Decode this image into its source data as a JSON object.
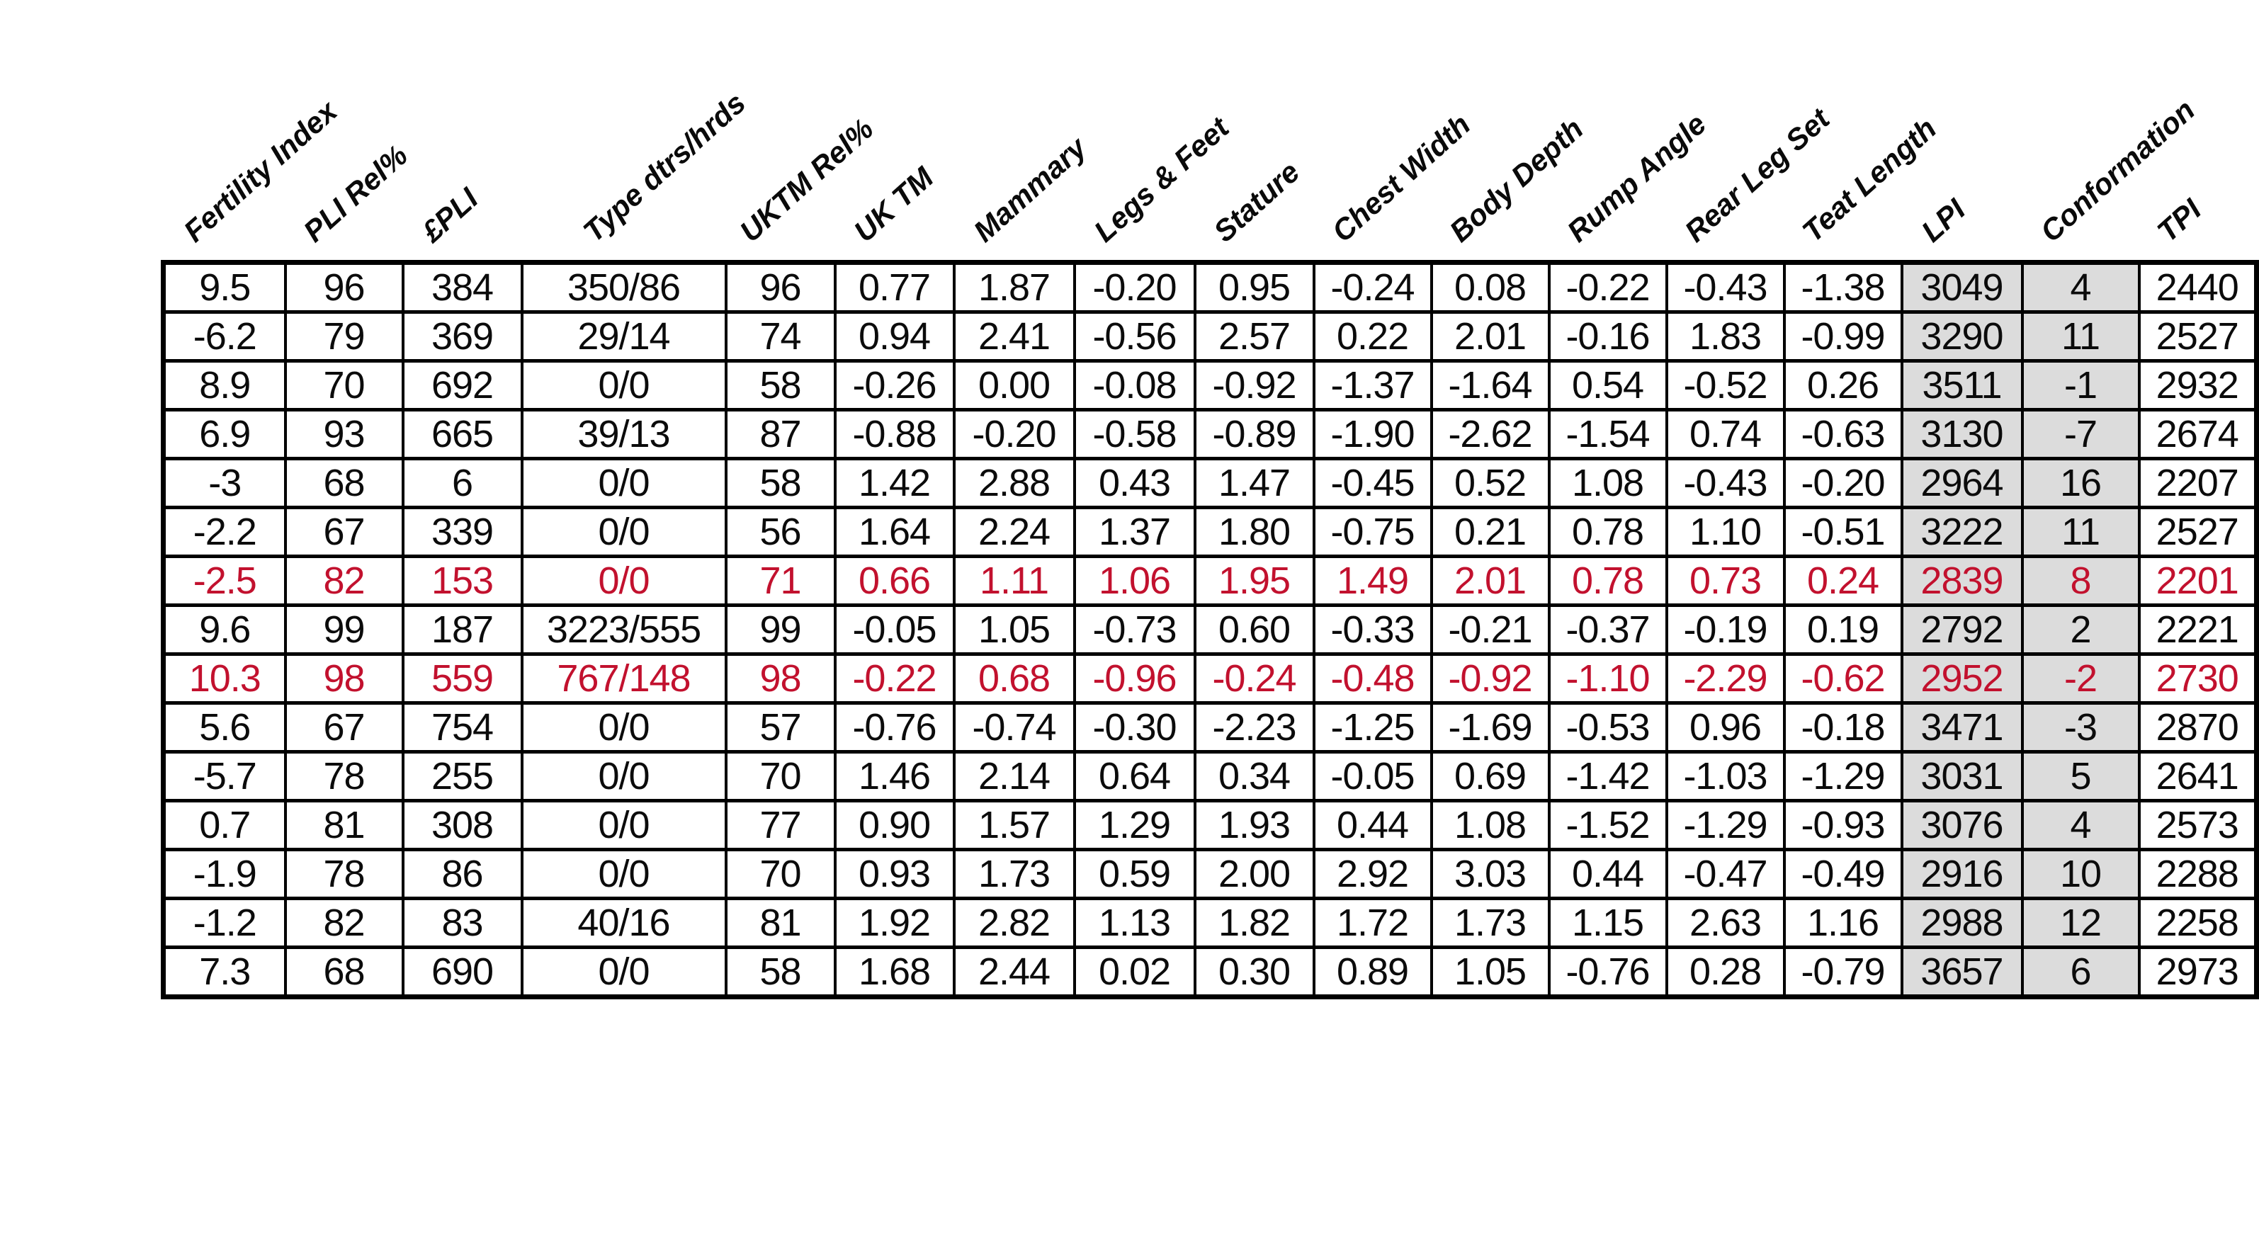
{
  "chart_data": {
    "type": "table",
    "title": "",
    "columns": [
      "Fertility Index",
      "PLI Rel%",
      "£PLI",
      "Type dtrs/hrds",
      "UKTM Rel%",
      "UK TM",
      "Mammary",
      "Legs & Feet",
      "Stature",
      "Chest Width",
      "Body Depth",
      "Rump Angle",
      "Rear Leg Set",
      "Teat Length",
      "LPI",
      "Conformation",
      "TPI"
    ],
    "rows": [
      [
        "9.5",
        "96",
        "384",
        "350/86",
        "96",
        "0.77",
        "1.87",
        "-0.20",
        "0.95",
        "-0.24",
        "0.08",
        "-0.22",
        "-0.43",
        "-1.38",
        "3049",
        "4",
        "2440"
      ],
      [
        "-6.2",
        "79",
        "369",
        "29/14",
        "74",
        "0.94",
        "2.41",
        "-0.56",
        "2.57",
        "0.22",
        "2.01",
        "-0.16",
        "1.83",
        "-0.99",
        "3290",
        "11",
        "2527"
      ],
      [
        "8.9",
        "70",
        "692",
        "0/0",
        "58",
        "-0.26",
        "0.00",
        "-0.08",
        "-0.92",
        "-1.37",
        "-1.64",
        "0.54",
        "-0.52",
        "0.26",
        "3511",
        "-1",
        "2932"
      ],
      [
        "6.9",
        "93",
        "665",
        "39/13",
        "87",
        "-0.88",
        "-0.20",
        "-0.58",
        "-0.89",
        "-1.90",
        "-2.62",
        "-1.54",
        "0.74",
        "-0.63",
        "3130",
        "-7",
        "2674"
      ],
      [
        "-3",
        "68",
        "6",
        "0/0",
        "58",
        "1.42",
        "2.88",
        "0.43",
        "1.47",
        "-0.45",
        "0.52",
        "1.08",
        "-0.43",
        "-0.20",
        "2964",
        "16",
        "2207"
      ],
      [
        "-2.2",
        "67",
        "339",
        "0/0",
        "56",
        "1.64",
        "2.24",
        "1.37",
        "1.80",
        "-0.75",
        "0.21",
        "0.78",
        "1.10",
        "-0.51",
        "3222",
        "11",
        "2527"
      ],
      [
        "-2.5",
        "82",
        "153",
        "0/0",
        "71",
        "0.66",
        "1.11",
        "1.06",
        "1.95",
        "1.49",
        "2.01",
        "0.78",
        "0.73",
        "0.24",
        "2839",
        "8",
        "2201"
      ],
      [
        "9.6",
        "99",
        "187",
        "3223/555",
        "99",
        "-0.05",
        "1.05",
        "-0.73",
        "0.60",
        "-0.33",
        "-0.21",
        "-0.37",
        "-0.19",
        "0.19",
        "2792",
        "2",
        "2221"
      ],
      [
        "10.3",
        "98",
        "559",
        "767/148",
        "98",
        "-0.22",
        "0.68",
        "-0.96",
        "-0.24",
        "-0.48",
        "-0.92",
        "-1.10",
        "-2.29",
        "-0.62",
        "2952",
        "-2",
        "2730"
      ],
      [
        "5.6",
        "67",
        "754",
        "0/0",
        "57",
        "-0.76",
        "-0.74",
        "-0.30",
        "-2.23",
        "-1.25",
        "-1.69",
        "-0.53",
        "0.96",
        "-0.18",
        "3471",
        "-3",
        "2870"
      ],
      [
        "-5.7",
        "78",
        "255",
        "0/0",
        "70",
        "1.46",
        "2.14",
        "0.64",
        "0.34",
        "-0.05",
        "0.69",
        "-1.42",
        "-1.03",
        "-1.29",
        "3031",
        "5",
        "2641"
      ],
      [
        "0.7",
        "81",
        "308",
        "0/0",
        "77",
        "0.90",
        "1.57",
        "1.29",
        "1.93",
        "0.44",
        "1.08",
        "-1.52",
        "-1.29",
        "-0.93",
        "3076",
        "4",
        "2573"
      ],
      [
        "-1.9",
        "78",
        "86",
        "0/0",
        "70",
        "0.93",
        "1.73",
        "0.59",
        "2.00",
        "2.92",
        "3.03",
        "0.44",
        "-0.47",
        "-0.49",
        "2916",
        "10",
        "2288"
      ],
      [
        "-1.2",
        "82",
        "83",
        "40/16",
        "81",
        "1.92",
        "2.82",
        "1.13",
        "1.82",
        "1.72",
        "1.73",
        "1.15",
        "2.63",
        "1.16",
        "2988",
        "12",
        "2258"
      ],
      [
        "7.3",
        "68",
        "690",
        "0/0",
        "58",
        "1.68",
        "2.44",
        "0.02",
        "0.30",
        "0.89",
        "1.05",
        "-0.76",
        "0.28",
        "-0.79",
        "3657",
        "6",
        "2973"
      ]
    ],
    "highlighted_row_indices": [
      6,
      8
    ],
    "highlight_color": "#C2112E",
    "shaded_column_indices": [
      14,
      15
    ],
    "shaded_column_color": "#DCDCDC",
    "border_color": "#000000",
    "background_color": "#FFFFFF",
    "legend_position": "none",
    "grid": true
  }
}
